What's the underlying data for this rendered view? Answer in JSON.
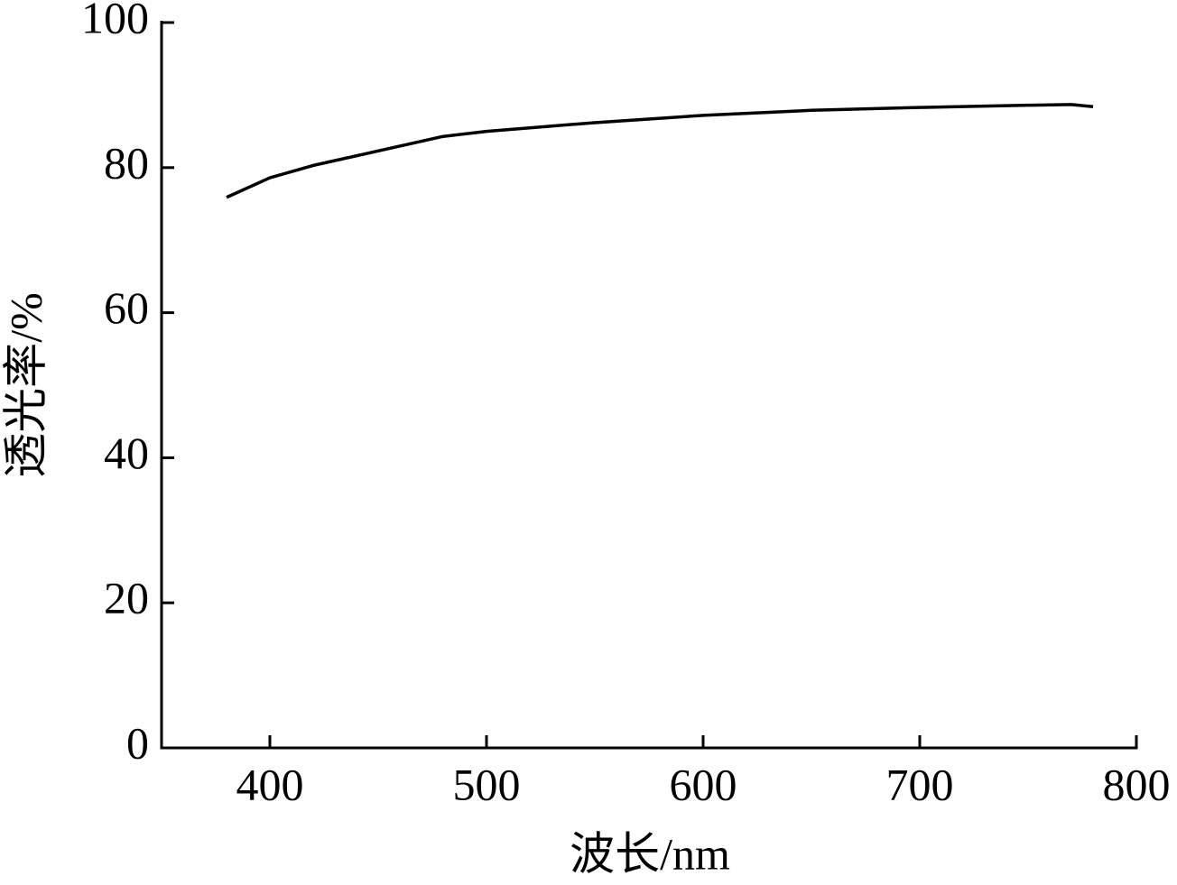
{
  "chart_data": {
    "type": "line",
    "x_label": "波长/nm",
    "y_label": "透光率/%",
    "x": [
      380,
      400,
      420,
      450,
      480,
      500,
      550,
      600,
      650,
      700,
      750,
      770,
      780
    ],
    "series": [
      {
        "color": "#000000",
        "values": [
          75.9,
          78.6,
          80.3,
          82.3,
          84.3,
          85.0,
          86.2,
          87.2,
          87.9,
          88.3,
          88.6,
          88.7,
          88.4
        ]
      }
    ],
    "xlim": [
      350,
      800
    ],
    "xticks": [
      400,
      500,
      600,
      700,
      800
    ],
    "ylim": [
      0,
      100
    ],
    "yticks": [
      0,
      20,
      40,
      60,
      80,
      100
    ]
  }
}
